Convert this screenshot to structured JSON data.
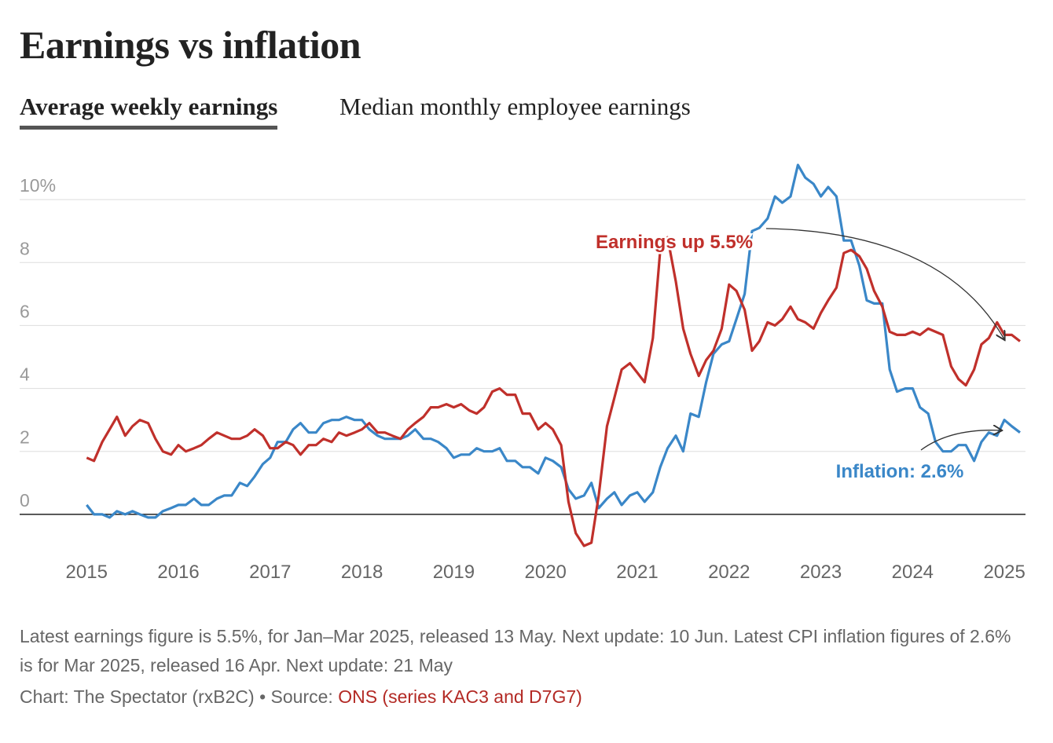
{
  "chart_data": {
    "type": "line",
    "title": "Earnings vs inflation",
    "tabs": [
      "Average weekly earnings",
      "Median monthly employee earnings"
    ],
    "x": [
      2015.0,
      2015.08,
      2015.17,
      2015.25,
      2015.33,
      2015.42,
      2015.5,
      2015.58,
      2015.67,
      2015.75,
      2015.83,
      2015.92,
      2016.0,
      2016.08,
      2016.17,
      2016.25,
      2016.33,
      2016.42,
      2016.5,
      2016.58,
      2016.67,
      2016.75,
      2016.83,
      2016.92,
      2017.0,
      2017.08,
      2017.17,
      2017.25,
      2017.33,
      2017.42,
      2017.5,
      2017.58,
      2017.67,
      2017.75,
      2017.83,
      2017.92,
      2018.0,
      2018.08,
      2018.17,
      2018.25,
      2018.33,
      2018.42,
      2018.5,
      2018.58,
      2018.67,
      2018.75,
      2018.83,
      2018.92,
      2019.0,
      2019.08,
      2019.17,
      2019.25,
      2019.33,
      2019.42,
      2019.5,
      2019.58,
      2019.67,
      2019.75,
      2019.83,
      2019.92,
      2020.0,
      2020.08,
      2020.17,
      2020.25,
      2020.33,
      2020.42,
      2020.5,
      2020.58,
      2020.67,
      2020.75,
      2020.83,
      2020.92,
      2021.0,
      2021.08,
      2021.17,
      2021.25,
      2021.33,
      2021.42,
      2021.5,
      2021.58,
      2021.67,
      2021.75,
      2021.83,
      2021.92,
      2022.0,
      2022.08,
      2022.17,
      2022.25,
      2022.33,
      2022.42,
      2022.5,
      2022.58,
      2022.67,
      2022.75,
      2022.83,
      2022.92,
      2023.0,
      2023.08,
      2023.17,
      2023.25,
      2023.33,
      2023.42,
      2023.5,
      2023.58,
      2023.67,
      2023.75,
      2023.83,
      2023.92,
      2024.0,
      2024.08,
      2024.17,
      2024.25,
      2024.33,
      2024.42,
      2024.5,
      2024.58,
      2024.67,
      2024.75,
      2024.83,
      2024.92,
      2025.0,
      2025.08,
      2025.17
    ],
    "series": [
      {
        "name": "Average weekly earnings",
        "color": "#c0302b",
        "values": [
          1.8,
          1.7,
          2.3,
          2.7,
          3.1,
          2.5,
          2.8,
          3.0,
          2.9,
          2.4,
          2.0,
          1.9,
          2.2,
          2.0,
          2.1,
          2.2,
          2.4,
          2.6,
          2.5,
          2.4,
          2.4,
          2.5,
          2.7,
          2.5,
          2.1,
          2.1,
          2.3,
          2.2,
          1.9,
          2.2,
          2.2,
          2.4,
          2.3,
          2.6,
          2.5,
          2.6,
          2.7,
          2.9,
          2.6,
          2.6,
          2.5,
          2.4,
          2.7,
          2.9,
          3.1,
          3.4,
          3.4,
          3.5,
          3.4,
          3.5,
          3.3,
          3.2,
          3.4,
          3.9,
          4.0,
          3.8,
          3.8,
          3.2,
          3.2,
          2.7,
          2.9,
          2.7,
          2.2,
          0.4,
          -0.6,
          -1.0,
          -0.9,
          0.6,
          2.8,
          3.7,
          4.6,
          4.8,
          4.5,
          4.2,
          5.6,
          8.4,
          8.8,
          7.4,
          5.9,
          5.1,
          4.4,
          4.9,
          5.2,
          5.9,
          7.3,
          7.1,
          6.5,
          5.2,
          5.5,
          6.1,
          6.0,
          6.2,
          6.6,
          6.2,
          6.1,
          5.9,
          6.4,
          6.8,
          7.2,
          8.3,
          8.4,
          8.2,
          7.8,
          7.1,
          6.6,
          5.8,
          5.7,
          5.7,
          5.8,
          5.7,
          5.9,
          5.8,
          5.7,
          4.7,
          4.3,
          4.1,
          4.6,
          5.4,
          5.6,
          6.1,
          5.7,
          5.7,
          5.5
        ]
      },
      {
        "name": "CPI inflation",
        "color": "#3a87c8",
        "values": [
          0.3,
          0.0,
          0.0,
          -0.1,
          0.1,
          0.0,
          0.1,
          0.0,
          -0.1,
          -0.1,
          0.1,
          0.2,
          0.3,
          0.3,
          0.5,
          0.3,
          0.3,
          0.5,
          0.6,
          0.6,
          1.0,
          0.9,
          1.2,
          1.6,
          1.8,
          2.3,
          2.3,
          2.7,
          2.9,
          2.6,
          2.6,
          2.9,
          3.0,
          3.0,
          3.1,
          3.0,
          3.0,
          2.7,
          2.5,
          2.4,
          2.4,
          2.4,
          2.5,
          2.7,
          2.4,
          2.4,
          2.3,
          2.1,
          1.8,
          1.9,
          1.9,
          2.1,
          2.0,
          2.0,
          2.1,
          1.7,
          1.7,
          1.5,
          1.5,
          1.3,
          1.8,
          1.7,
          1.5,
          0.8,
          0.5,
          0.6,
          1.0,
          0.2,
          0.5,
          0.7,
          0.3,
          0.6,
          0.7,
          0.4,
          0.7,
          1.5,
          2.1,
          2.5,
          2.0,
          3.2,
          3.1,
          4.2,
          5.1,
          5.4,
          5.5,
          6.2,
          7.0,
          9.0,
          9.1,
          9.4,
          10.1,
          9.9,
          10.1,
          11.1,
          10.7,
          10.5,
          10.1,
          10.4,
          10.1,
          8.7,
          8.7,
          7.9,
          6.8,
          6.7,
          6.7,
          4.6,
          3.9,
          4.0,
          4.0,
          3.4,
          3.2,
          2.3,
          2.0,
          2.0,
          2.2,
          2.2,
          1.7,
          2.3,
          2.6,
          2.5,
          3.0,
          2.8,
          2.6
        ]
      }
    ],
    "xlim": [
      2014.27,
      2025.23
    ],
    "xticks": [
      2015,
      2016,
      2017,
      2018,
      2019,
      2020,
      2021,
      2022,
      2023,
      2024,
      2025
    ],
    "ylim": [
      -1.25,
      11.35
    ],
    "yticks": [
      0,
      2,
      4,
      6,
      8,
      {
        "value": 10,
        "label": "10%"
      }
    ],
    "grid": true,
    "annotations": [
      "Earnings up 5.5%",
      "Inflation: 2.6%"
    ],
    "note": "Latest earnings figure is 5.5%, for Jan–Mar 2025, released 13 May. Next update: 10 Jun. Latest CPI inflation figures of 2.6% is for Mar 2025, released 16 Apr. Next update: 21 May",
    "credit": "Chart: The Spectator (rxB2C) • Source: ",
    "source": "ONS (series KAC3 and D7G7)"
  }
}
